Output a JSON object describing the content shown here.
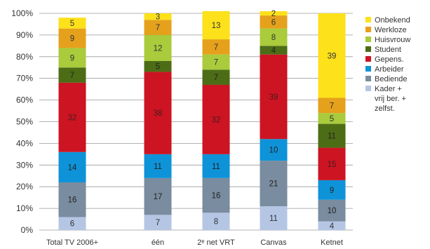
{
  "chart_data": {
    "type": "bar",
    "stacked": true,
    "title": "",
    "xlabel": "",
    "ylabel": "",
    "ylim": [
      0,
      100
    ],
    "y_ticks": [
      "0%",
      "10%",
      "20%",
      "30%",
      "40%",
      "50%",
      "60%",
      "70%",
      "80%",
      "90%",
      "100%"
    ],
    "grid": true,
    "legend_position": "right",
    "categories": [
      "Total TV 2006+",
      "één",
      "2ᵉ net VRT",
      "Canvas",
      "Ketnet"
    ],
    "series": [
      {
        "name": "Kader + vrij ber. + zelfst.",
        "legend_lines": [
          "Kader +",
          "vrij ber. +",
          "zelfst."
        ],
        "color": "#b4c6e4",
        "label_color": "#333333",
        "values": [
          6,
          7,
          8,
          11,
          4
        ]
      },
      {
        "name": "Bediende",
        "legend_lines": [
          "Bediende"
        ],
        "color": "#7a8c9f",
        "label_color": "#222222",
        "values": [
          16,
          17,
          16,
          21,
          10
        ]
      },
      {
        "name": "Arbeider",
        "legend_lines": [
          "Arbeider"
        ],
        "color": "#0e93d8",
        "label_color": "#222222",
        "values": [
          14,
          11,
          11,
          10,
          9
        ]
      },
      {
        "name": "Gepens.",
        "legend_lines": [
          "Gepens."
        ],
        "color": "#cc1423",
        "label_color": "#4a1a1a",
        "values": [
          32,
          38,
          32,
          39,
          15
        ]
      },
      {
        "name": "Student",
        "legend_lines": [
          "Student"
        ],
        "color": "#4d6c16",
        "label_color": "#222222",
        "values": [
          7,
          5,
          7,
          4,
          11
        ]
      },
      {
        "name": "Huisvrouw",
        "legend_lines": [
          "Huisvrouw"
        ],
        "color": "#a9cb3c",
        "label_color": "#333333",
        "values": [
          9,
          12,
          7,
          8,
          5
        ]
      },
      {
        "name": "Werkloze",
        "legend_lines": [
          "Werkloze"
        ],
        "color": "#e5a11c",
        "label_color": "#333333",
        "values": [
          9,
          7,
          7,
          6,
          7
        ]
      },
      {
        "name": "Onbekend",
        "legend_lines": [
          "Onbekend"
        ],
        "color": "#fce11b",
        "label_color": "#333333",
        "values": [
          5,
          3,
          13,
          2,
          39
        ]
      }
    ]
  }
}
